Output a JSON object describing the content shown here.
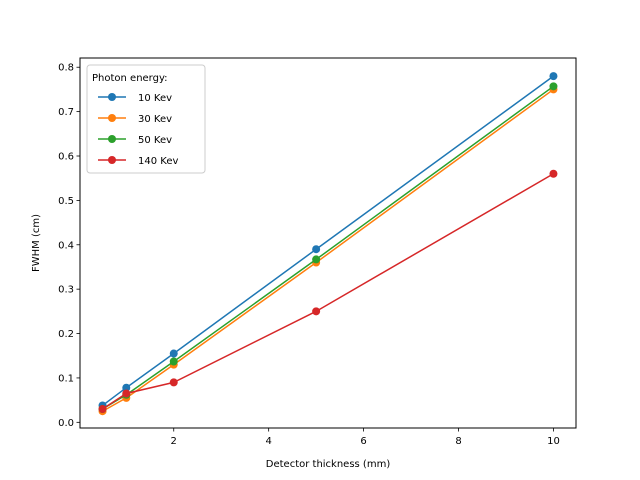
{
  "chart_data": {
    "type": "line",
    "title": "",
    "xlabel": "Detector thickness (mm)",
    "ylabel": "FWHM (cm)",
    "xlim": [
      0.025,
      10.475
    ],
    "ylim": [
      -0.0128,
      0.8208
    ],
    "xticks": [
      2,
      4,
      6,
      8,
      10
    ],
    "yticks": [
      0.0,
      0.1,
      0.2,
      0.3,
      0.4,
      0.5,
      0.6,
      0.7,
      0.8
    ],
    "grid": false,
    "legend": {
      "title": "Photon energy:",
      "placement": "top-left"
    },
    "x": [
      0.5,
      1,
      2,
      5,
      10
    ],
    "series": [
      {
        "name": "10 Kev",
        "color": "#1f77b4",
        "values": [
          0.038,
          0.078,
          0.155,
          0.39,
          0.78
        ]
      },
      {
        "name": "30 Kev",
        "color": "#ff7f0e",
        "values": [
          0.025,
          0.055,
          0.13,
          0.36,
          0.75
        ]
      },
      {
        "name": "50 Kev",
        "color": "#2ca02c",
        "values": [
          0.03,
          0.062,
          0.137,
          0.367,
          0.757
        ]
      },
      {
        "name": "140 Kev",
        "color": "#d62728",
        "values": [
          0.03,
          0.065,
          0.09,
          0.25,
          0.56
        ]
      }
    ]
  }
}
